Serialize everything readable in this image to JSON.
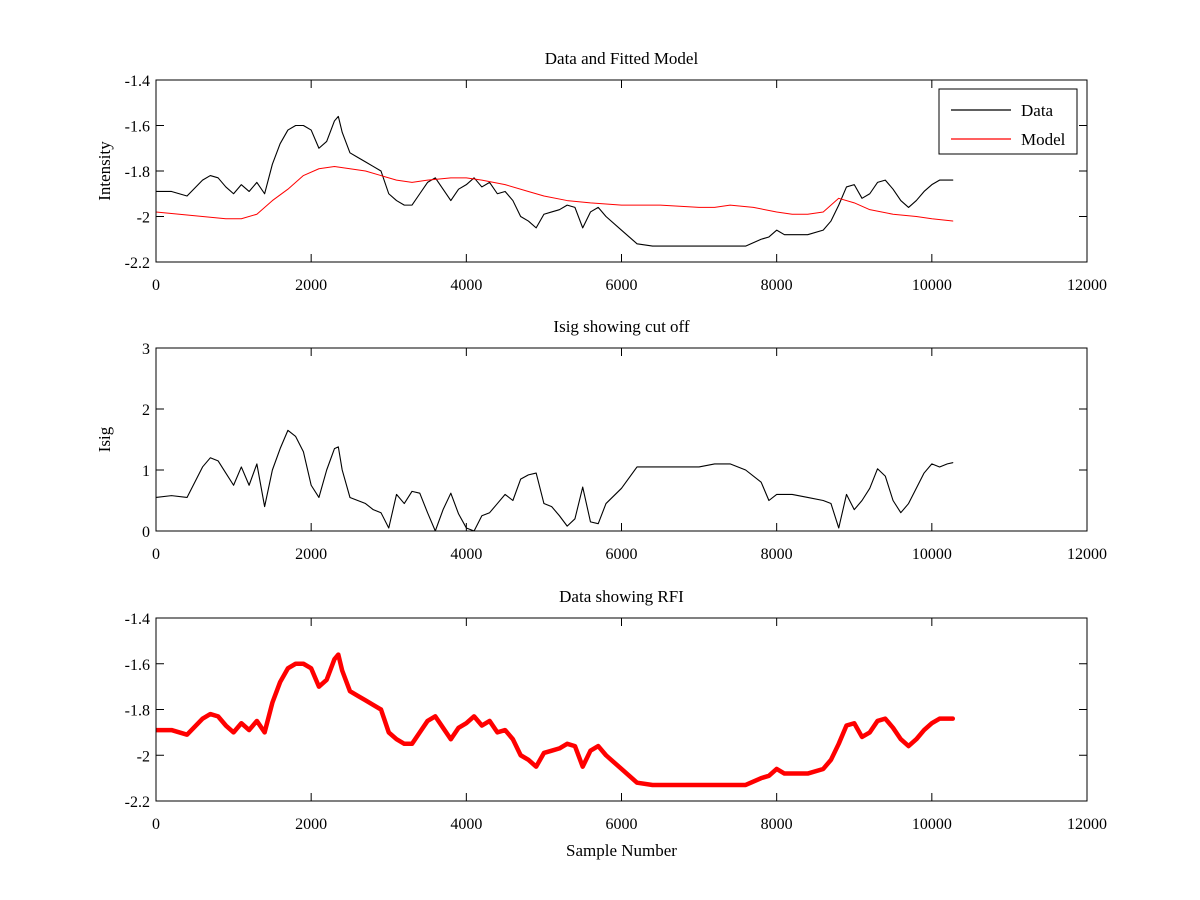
{
  "chart_data": [
    {
      "type": "line",
      "title": "Data and Fitted Model",
      "xlabel": "",
      "ylabel": "Intensity",
      "xlim": [
        0,
        12000
      ],
      "ylim": [
        -2.2,
        -1.4
      ],
      "xticks": [
        0,
        2000,
        4000,
        6000,
        8000,
        10000,
        12000
      ],
      "yticks": [
        -2.2,
        -2,
        -1.8,
        -1.6,
        -1.4
      ],
      "xtick_labels": [
        "0",
        "2000",
        "4000",
        "6000",
        "8000",
        "10000",
        "12000"
      ],
      "ytick_labels": [
        "-2.2",
        "-2",
        "-1.8",
        "-1.6",
        "-1.4"
      ],
      "grid": false,
      "legend": {
        "placement": "top-right",
        "entries": [
          "Data",
          "Model"
        ]
      },
      "series": [
        {
          "name": "Data",
          "color": "#000000",
          "x": [
            0,
            200,
            400,
            600,
            700,
            800,
            900,
            1000,
            1100,
            1200,
            1300,
            1400,
            1500,
            1600,
            1700,
            1800,
            1900,
            2000,
            2100,
            2200,
            2300,
            2350,
            2400,
            2500,
            2600,
            2700,
            2800,
            2900,
            3000,
            3100,
            3200,
            3300,
            3400,
            3500,
            3600,
            3700,
            3800,
            3900,
            4000,
            4100,
            4200,
            4300,
            4400,
            4500,
            4600,
            4700,
            4800,
            4900,
            5000,
            5100,
            5200,
            5300,
            5400,
            5500,
            5600,
            5700,
            5800,
            6000,
            6200,
            6400,
            6600,
            6800,
            7000,
            7200,
            7400,
            7600,
            7800,
            7900,
            8000,
            8100,
            8200,
            8400,
            8600,
            8700,
            8800,
            8900,
            9000,
            9100,
            9200,
            9300,
            9400,
            9500,
            9600,
            9700,
            9800,
            9900,
            10000,
            10100,
            10200,
            10270
          ],
          "y": [
            -1.89,
            -1.89,
            -1.91,
            -1.84,
            -1.82,
            -1.83,
            -1.87,
            -1.9,
            -1.86,
            -1.89,
            -1.85,
            -1.9,
            -1.77,
            -1.68,
            -1.62,
            -1.6,
            -1.6,
            -1.62,
            -1.7,
            -1.67,
            -1.58,
            -1.56,
            -1.63,
            -1.72,
            -1.74,
            -1.76,
            -1.78,
            -1.8,
            -1.9,
            -1.93,
            -1.95,
            -1.95,
            -1.9,
            -1.85,
            -1.83,
            -1.88,
            -1.93,
            -1.88,
            -1.86,
            -1.83,
            -1.87,
            -1.85,
            -1.9,
            -1.89,
            -1.93,
            -2.0,
            -2.02,
            -2.05,
            -1.99,
            -1.98,
            -1.97,
            -1.95,
            -1.96,
            -2.05,
            -1.98,
            -1.96,
            -2.0,
            -2.06,
            -2.12,
            -2.13,
            -2.13,
            -2.13,
            -2.13,
            -2.13,
            -2.13,
            -2.13,
            -2.1,
            -2.09,
            -2.06,
            -2.08,
            -2.08,
            -2.08,
            -2.06,
            -2.02,
            -1.95,
            -1.87,
            -1.86,
            -1.92,
            -1.9,
            -1.85,
            -1.84,
            -1.88,
            -1.93,
            -1.96,
            -1.93,
            -1.89,
            -1.86,
            -1.84,
            -1.84,
            -1.84
          ]
        },
        {
          "name": "Model",
          "color": "#ff0000",
          "x": [
            0,
            300,
            600,
            900,
            1100,
            1300,
            1500,
            1700,
            1900,
            2100,
            2300,
            2500,
            2700,
            2900,
            3100,
            3300,
            3500,
            3800,
            4000,
            4200,
            4500,
            4800,
            5000,
            5300,
            5600,
            6000,
            6500,
            7000,
            7200,
            7400,
            7700,
            8000,
            8200,
            8400,
            8600,
            8800,
            9000,
            9200,
            9500,
            9800,
            10000,
            10270
          ],
          "y": [
            -1.98,
            -1.99,
            -2.0,
            -2.01,
            -2.01,
            -1.99,
            -1.93,
            -1.88,
            -1.82,
            -1.79,
            -1.78,
            -1.79,
            -1.8,
            -1.82,
            -1.84,
            -1.85,
            -1.84,
            -1.83,
            -1.83,
            -1.84,
            -1.86,
            -1.89,
            -1.91,
            -1.93,
            -1.94,
            -1.95,
            -1.95,
            -1.96,
            -1.96,
            -1.95,
            -1.96,
            -1.98,
            -1.99,
            -1.99,
            -1.98,
            -1.92,
            -1.94,
            -1.97,
            -1.99,
            -2.0,
            -2.01,
            -2.02
          ]
        }
      ]
    },
    {
      "type": "line",
      "title": "Isig showing cut off",
      "xlabel": "",
      "ylabel": "Isig",
      "xlim": [
        0,
        12000
      ],
      "ylim": [
        0,
        3
      ],
      "xticks": [
        0,
        2000,
        4000,
        6000,
        8000,
        10000,
        12000
      ],
      "yticks": [
        0,
        1,
        2,
        3
      ],
      "xtick_labels": [
        "0",
        "2000",
        "4000",
        "6000",
        "8000",
        "10000",
        "12000"
      ],
      "ytick_labels": [
        "0",
        "1",
        "2",
        "3"
      ],
      "grid": false,
      "series": [
        {
          "color": "#000000",
          "x": [
            0,
            200,
            400,
            600,
            700,
            800,
            900,
            1000,
            1100,
            1200,
            1300,
            1400,
            1500,
            1600,
            1700,
            1800,
            1900,
            2000,
            2100,
            2200,
            2300,
            2350,
            2400,
            2500,
            2600,
            2700,
            2800,
            2900,
            3000,
            3100,
            3200,
            3300,
            3400,
            3500,
            3600,
            3700,
            3800,
            3900,
            4000,
            4100,
            4200,
            4300,
            4400,
            4500,
            4600,
            4700,
            4800,
            4900,
            5000,
            5100,
            5200,
            5300,
            5400,
            5500,
            5600,
            5700,
            5800,
            6000,
            6200,
            6400,
            6600,
            6800,
            7000,
            7200,
            7400,
            7600,
            7800,
            7900,
            8000,
            8100,
            8200,
            8400,
            8600,
            8700,
            8800,
            8900,
            9000,
            9100,
            9200,
            9300,
            9400,
            9500,
            9600,
            9700,
            9800,
            9900,
            10000,
            10100,
            10200,
            10270
          ],
          "y": [
            0.55,
            0.58,
            0.55,
            1.05,
            1.2,
            1.15,
            0.95,
            0.75,
            1.05,
            0.75,
            1.1,
            0.4,
            1.0,
            1.35,
            1.65,
            1.55,
            1.3,
            0.75,
            0.55,
            1.0,
            1.35,
            1.38,
            1.0,
            0.55,
            0.5,
            0.45,
            0.35,
            0.3,
            0.05,
            0.6,
            0.45,
            0.65,
            0.62,
            0.3,
            0.0,
            0.35,
            0.62,
            0.28,
            0.05,
            0.0,
            0.25,
            0.3,
            0.45,
            0.6,
            0.5,
            0.85,
            0.92,
            0.95,
            0.45,
            0.4,
            0.25,
            0.08,
            0.2,
            0.72,
            0.15,
            0.12,
            0.45,
            0.7,
            1.05,
            1.05,
            1.05,
            1.05,
            1.05,
            1.1,
            1.1,
            1.0,
            0.8,
            0.5,
            0.6,
            0.6,
            0.6,
            0.55,
            0.5,
            0.45,
            0.05,
            0.6,
            0.35,
            0.5,
            0.7,
            1.02,
            0.9,
            0.5,
            0.3,
            0.45,
            0.7,
            0.95,
            1.1,
            1.05,
            1.1,
            1.12
          ]
        }
      ]
    },
    {
      "type": "line",
      "title": "Data showing RFI",
      "xlabel": "Sample Number",
      "ylabel": "",
      "xlim": [
        0,
        12000
      ],
      "ylim": [
        -2.2,
        -1.4
      ],
      "xticks": [
        0,
        2000,
        4000,
        6000,
        8000,
        10000,
        12000
      ],
      "yticks": [
        -2.2,
        -2,
        -1.8,
        -1.6,
        -1.4
      ],
      "xtick_labels": [
        "0",
        "2000",
        "4000",
        "6000",
        "8000",
        "10000",
        "12000"
      ],
      "ytick_labels": [
        "-2.2",
        "-2",
        "-1.8",
        "-1.6",
        "-1.4"
      ],
      "grid": false,
      "series": [
        {
          "color": "#ff0000",
          "x": [
            0,
            200,
            400,
            600,
            700,
            800,
            900,
            1000,
            1100,
            1200,
            1300,
            1400,
            1500,
            1600,
            1700,
            1800,
            1900,
            2000,
            2100,
            2200,
            2300,
            2350,
            2400,
            2500,
            2600,
            2700,
            2800,
            2900,
            3000,
            3100,
            3200,
            3300,
            3400,
            3500,
            3600,
            3700,
            3800,
            3900,
            4000,
            4100,
            4200,
            4300,
            4400,
            4500,
            4600,
            4700,
            4800,
            4900,
            5000,
            5100,
            5200,
            5300,
            5400,
            5500,
            5600,
            5700,
            5800,
            6000,
            6200,
            6400,
            6600,
            6800,
            7000,
            7200,
            7400,
            7600,
            7800,
            7900,
            8000,
            8100,
            8200,
            8400,
            8600,
            8700,
            8800,
            8900,
            9000,
            9100,
            9200,
            9300,
            9400,
            9500,
            9600,
            9700,
            9800,
            9900,
            10000,
            10100,
            10200,
            10270
          ],
          "y": [
            -1.89,
            -1.89,
            -1.91,
            -1.84,
            -1.82,
            -1.83,
            -1.87,
            -1.9,
            -1.86,
            -1.89,
            -1.85,
            -1.9,
            -1.77,
            -1.68,
            -1.62,
            -1.6,
            -1.6,
            -1.62,
            -1.7,
            -1.67,
            -1.58,
            -1.56,
            -1.63,
            -1.72,
            -1.74,
            -1.76,
            -1.78,
            -1.8,
            -1.9,
            -1.93,
            -1.95,
            -1.95,
            -1.9,
            -1.85,
            -1.83,
            -1.88,
            -1.93,
            -1.88,
            -1.86,
            -1.83,
            -1.87,
            -1.85,
            -1.9,
            -1.89,
            -1.93,
            -2.0,
            -2.02,
            -2.05,
            -1.99,
            -1.98,
            -1.97,
            -1.95,
            -1.96,
            -2.05,
            -1.98,
            -1.96,
            -2.0,
            -2.06,
            -2.12,
            -2.13,
            -2.13,
            -2.13,
            -2.13,
            -2.13,
            -2.13,
            -2.13,
            -2.1,
            -2.09,
            -2.06,
            -2.08,
            -2.08,
            -2.08,
            -2.06,
            -2.02,
            -1.95,
            -1.87,
            -1.86,
            -1.92,
            -1.9,
            -1.85,
            -1.84,
            -1.88,
            -1.93,
            -1.96,
            -1.93,
            -1.89,
            -1.86,
            -1.84,
            -1.84,
            -1.84
          ]
        }
      ]
    }
  ]
}
